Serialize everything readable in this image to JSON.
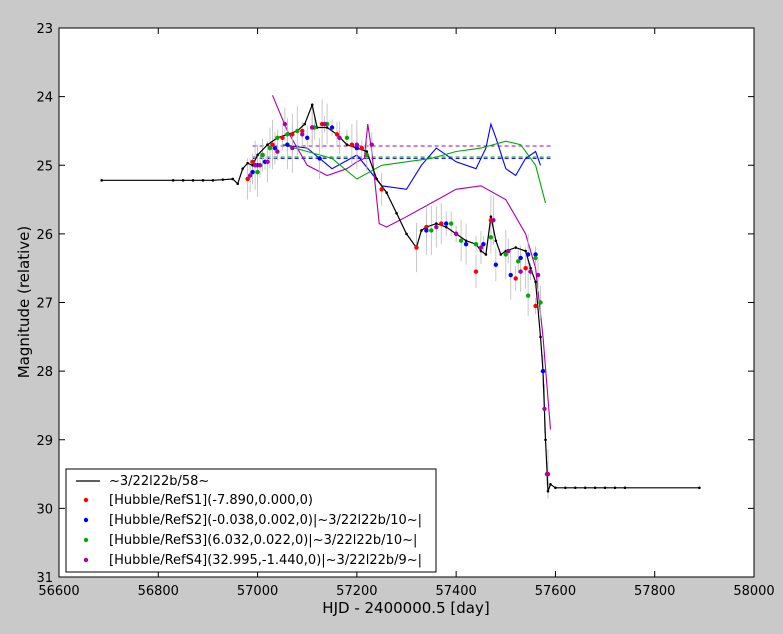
{
  "chart_data": {
    "type": "scatter",
    "title": "",
    "xlabel": "HJD - 2400000.5 [day]",
    "ylabel": "Magnitude (relative)",
    "xlim": [
      56600,
      58000
    ],
    "ylim": [
      31,
      23
    ],
    "y_inverted": true,
    "grid": false,
    "legend_position": "lower-left",
    "x_ticks": [
      "56600",
      "56800",
      "57000",
      "57200",
      "57400",
      "57600",
      "57800",
      "58000"
    ],
    "y_ticks": [
      "23",
      "24",
      "25",
      "26",
      "27",
      "28",
      "29",
      "30",
      "31"
    ],
    "series": [
      {
        "name": "~3/22l22b/58~",
        "kind": "line",
        "color": "#000000",
        "x": [
          56686,
          56830,
          56850,
          56870,
          56890,
          56910,
          56930,
          56950,
          56960,
          56970,
          56980,
          56990,
          57000,
          57020,
          57040,
          57060,
          57080,
          57095,
          57110,
          57120,
          57140,
          57160,
          57180,
          57200,
          57220,
          57240,
          57260,
          57280,
          57300,
          57320,
          57330,
          57340,
          57360,
          57380,
          57400,
          57420,
          57440,
          57450,
          57460,
          57470,
          57480,
          57490,
          57500,
          57520,
          57540,
          57550,
          57560,
          57570,
          57575,
          57580,
          57585,
          57590,
          57600,
          57620,
          57640,
          57660,
          57680,
          57700,
          57720,
          57740,
          57890
        ],
        "y": [
          25.22,
          25.22,
          25.22,
          25.22,
          25.22,
          25.22,
          25.21,
          25.2,
          25.27,
          25.05,
          24.97,
          25.0,
          24.85,
          24.7,
          24.6,
          24.55,
          24.5,
          24.4,
          24.12,
          24.45,
          24.45,
          24.55,
          24.7,
          24.75,
          24.8,
          25.2,
          25.4,
          25.7,
          26.0,
          26.2,
          25.95,
          25.9,
          25.85,
          25.9,
          26.0,
          26.1,
          26.15,
          26.25,
          26.3,
          25.75,
          26.1,
          26.3,
          26.25,
          26.2,
          26.25,
          26.5,
          26.7,
          27.5,
          28.0,
          29.0,
          29.75,
          29.65,
          29.7,
          29.7,
          29.7,
          29.7,
          29.7,
          29.7,
          29.7,
          29.7,
          29.7
        ]
      },
      {
        "name": "[Hubble/RefS1](-7.890,0.000,0)",
        "kind": "points",
        "color": "#ff0000",
        "x": [
          56980,
          56990,
          57010,
          57030,
          57050,
          57070,
          57090,
          57110,
          57130,
          57160,
          57190,
          57210,
          57250,
          57320,
          57340,
          57370,
          57400,
          57440,
          57470,
          57520,
          57540,
          57560,
          57575,
          57585
        ],
        "y": [
          25.2,
          24.95,
          24.85,
          24.7,
          24.6,
          24.55,
          24.5,
          24.45,
          24.4,
          24.55,
          24.7,
          24.75,
          25.35,
          26.2,
          25.9,
          25.85,
          26.0,
          26.55,
          25.8,
          26.65,
          26.5,
          27.05,
          28.0,
          29.5
        ]
      },
      {
        "name": "[Hubble/RefS2](-0.038,0.002,0)|~3/22l22b/10~|",
        "kind": "points",
        "color": "#0000ff",
        "x": [
          56990,
          57000,
          57015,
          57035,
          57060,
          57100,
          57125,
          57150,
          57200,
          57340,
          57380,
          57420,
          57455,
          57480,
          57510,
          57530,
          57545,
          57560,
          57575
        ],
        "y": [
          25.1,
          25.0,
          24.95,
          24.75,
          24.7,
          24.6,
          24.9,
          24.45,
          24.75,
          25.95,
          25.85,
          26.15,
          26.15,
          26.45,
          26.6,
          26.35,
          26.3,
          26.3,
          28.0
        ]
      },
      {
        "name": "[Hubble/RefS3](6.032,0.022,0)|~3/22l22b/10~|",
        "kind": "points",
        "color": "#00aa00",
        "x": [
          57000,
          57010,
          57025,
          57040,
          57060,
          57080,
          57115,
          57140,
          57180,
          57220,
          57350,
          57390,
          57410,
          57440,
          57470,
          57500,
          57525,
          57545,
          57560,
          57570
        ],
        "y": [
          25.1,
          24.85,
          24.75,
          24.6,
          24.55,
          24.5,
          24.45,
          24.4,
          24.6,
          24.85,
          25.95,
          25.85,
          26.1,
          26.15,
          26.05,
          26.3,
          26.4,
          26.9,
          26.35,
          27.0
        ]
      },
      {
        "name": "[Hubble/RefS4](32.995,-1.440,0)|~3/22l22b/9~|",
        "kind": "points",
        "color": "#aa00aa",
        "x": [
          56985,
          56995,
          57005,
          57020,
          57040,
          57055,
          57070,
          57090,
          57110,
          57135,
          57165,
          57200,
          57230,
          57360,
          57400,
          57450,
          57475,
          57505,
          57530,
          57550,
          57565,
          57578,
          57583
        ],
        "y": [
          25.15,
          25.0,
          25.0,
          24.95,
          24.8,
          24.4,
          24.75,
          24.55,
          24.45,
          24.4,
          24.6,
          24.7,
          24.7,
          25.9,
          26.0,
          26.2,
          25.8,
          26.25,
          26.55,
          26.55,
          26.6,
          28.55,
          29.5
        ]
      }
    ],
    "fit_curves": [
      {
        "color": "#0000ff",
        "x": [
          57050,
          57100,
          57150,
          57200,
          57250,
          57300,
          57330,
          57360,
          57400,
          57440,
          57460,
          57470,
          57480,
          57500,
          57520,
          57540,
          57560,
          57570
        ],
        "y": [
          24.7,
          24.75,
          25.05,
          24.85,
          25.3,
          25.35,
          25.0,
          24.75,
          24.95,
          25.05,
          24.75,
          24.4,
          24.6,
          25.05,
          25.15,
          24.9,
          24.8,
          25.0
        ]
      },
      {
        "color": "#00aa00",
        "x": [
          57050,
          57100,
          57150,
          57200,
          57250,
          57300,
          57350,
          57400,
          57450,
          57500,
          57530,
          57560,
          57580
        ],
        "y": [
          24.7,
          24.8,
          24.9,
          25.2,
          25.0,
          24.95,
          24.9,
          24.8,
          24.75,
          24.65,
          24.7,
          25.0,
          25.55
        ]
      },
      {
        "color": "#aa00aa",
        "x": [
          57030,
          57060,
          57100,
          57140,
          57180,
          57200,
          57215,
          57222,
          57230,
          57245,
          57260,
          57300,
          57350,
          57400,
          57450,
          57500,
          57540,
          57560,
          57575,
          57585,
          57590
        ],
        "y": [
          23.98,
          24.5,
          25.0,
          25.15,
          25.05,
          24.95,
          24.9,
          24.4,
          24.8,
          25.85,
          25.9,
          25.75,
          25.55,
          25.35,
          25.3,
          25.5,
          26.0,
          26.5,
          27.5,
          28.4,
          28.85
        ]
      }
    ],
    "reference_lines": [
      {
        "color": "#aa00aa",
        "y": 24.72,
        "x_start": 56990,
        "x_end": 57590
      },
      {
        "color": "#00aa00",
        "y": 24.88,
        "x_start": 56990,
        "x_end": 57590
      },
      {
        "color": "#0000ff",
        "y": 24.9,
        "x_start": 56990,
        "x_end": 57590
      }
    ]
  }
}
